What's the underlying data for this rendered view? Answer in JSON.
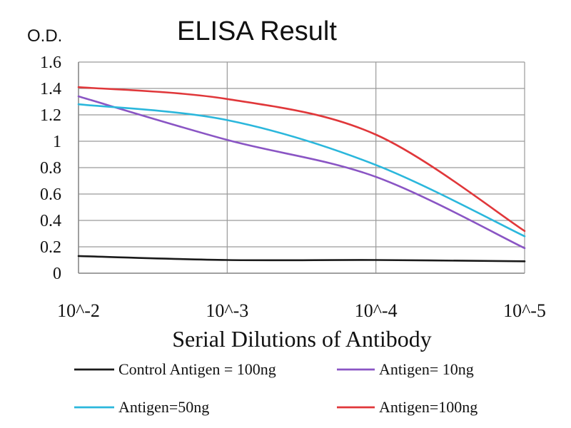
{
  "chart_data": {
    "type": "line",
    "title": "ELISA Result",
    "ylabel": "O.D.",
    "xlabel": "Serial Dilutions of Antibody",
    "categories": [
      "10^-2",
      "10^-3",
      "10^-4",
      "10^-5"
    ],
    "ylim": [
      0,
      1.6
    ],
    "yticks": [
      "0",
      "0.2",
      "0.4",
      "0.6",
      "0.8",
      "1",
      "1.2",
      "1.4",
      "1.6"
    ],
    "grid": true,
    "legend_position": "bottom",
    "series": [
      {
        "name": "Control Antigen = 100ng",
        "color": "#1a1a1a",
        "values": [
          0.13,
          0.1,
          0.1,
          0.09
        ]
      },
      {
        "name": "Antigen= 10ng",
        "color": "#8a55c4",
        "values": [
          1.34,
          1.01,
          0.73,
          0.19
        ]
      },
      {
        "name": "Antigen=50ng",
        "color": "#2bb7dc",
        "values": [
          1.28,
          1.16,
          0.82,
          0.28
        ]
      },
      {
        "name": "Antigen=100ng",
        "color": "#e0373a",
        "values": [
          1.41,
          1.32,
          1.05,
          0.32
        ]
      }
    ]
  }
}
